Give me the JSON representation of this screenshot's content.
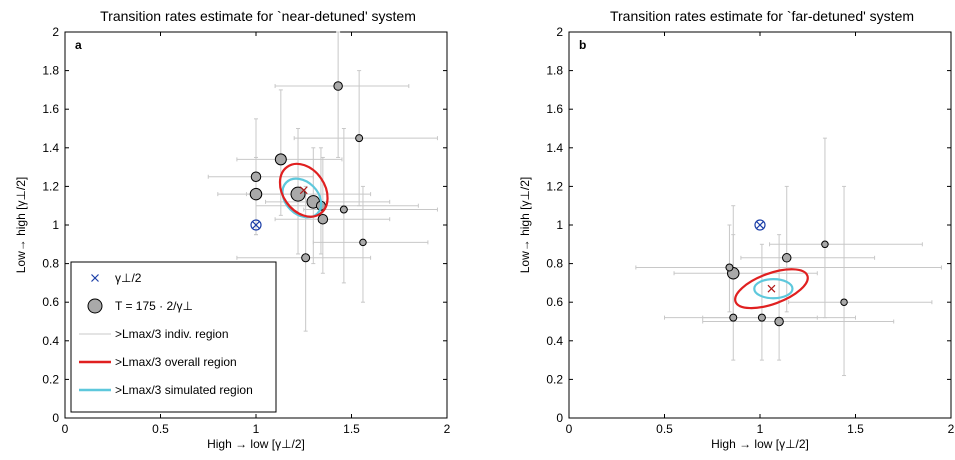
{
  "colors": {
    "point_fill": "#a9a9a9",
    "errorbar": "#c8c8c8",
    "overall": "#e02020",
    "simulated": "#5ec8dc",
    "gamma_marker": "#1c3fa8",
    "overall_center": "#b01818"
  },
  "legend": {
    "gamma": "γ⊥/2",
    "T_label": "T = 175 · 2/γ⊥",
    "indiv": ">Lmax/3 indiv. region",
    "overall": ">Lmax/3 overall region",
    "simulated": ">Lmax/3 simulated region"
  },
  "chart_data": [
    {
      "type": "scatter",
      "panel": "a",
      "title": "Transition rates estimate for `near-detuned' system",
      "xlabel": "High → low [γ⊥/2]",
      "ylabel": "Low→ high [γ⊥/2]",
      "xlim": [
        0,
        2
      ],
      "ylim": [
        0,
        2
      ],
      "xticks": [
        "0",
        "0.5",
        "1",
        "1.5",
        "2"
      ],
      "yticks": [
        "0",
        "0.2",
        "0.4",
        "0.6",
        "0.8",
        "1",
        "1.2",
        "1.4",
        "1.6",
        "1.8",
        "2"
      ],
      "gamma_marker": {
        "x": 1.0,
        "y": 1.0
      },
      "overall_ellipse": {
        "cx": 1.25,
        "cy": 1.18,
        "rx": 0.11,
        "ry": 0.15,
        "angle_deg": 35
      },
      "simulated_ellipse": {
        "cx": 1.24,
        "cy": 1.14,
        "rx": 0.085,
        "ry": 0.115,
        "angle_deg": 45
      },
      "overall_center": {
        "x": 1.25,
        "y": 1.18
      },
      "points": [
        {
          "x": 1.43,
          "y": 1.72,
          "size": 0.45,
          "xerr": [
            1.1,
            1.8
          ],
          "yerr": [
            1.35,
            2.0
          ]
        },
        {
          "x": 1.54,
          "y": 1.45,
          "size": 0.3,
          "xerr": [
            1.2,
            1.95
          ],
          "yerr": [
            1.1,
            1.8
          ]
        },
        {
          "x": 1.13,
          "y": 1.34,
          "size": 0.7,
          "xerr": [
            0.9,
            1.45
          ],
          "yerr": [
            1.05,
            1.7
          ]
        },
        {
          "x": 1.0,
          "y": 1.25,
          "size": 0.55,
          "xerr": [
            0.75,
            1.3
          ],
          "yerr": [
            0.95,
            1.55
          ]
        },
        {
          "x": 1.0,
          "y": 1.16,
          "size": 0.75,
          "xerr": [
            0.8,
            1.2
          ],
          "yerr": [
            0.95,
            1.35
          ]
        },
        {
          "x": 1.22,
          "y": 1.16,
          "size": 1.0,
          "xerr": [
            0.95,
            1.6
          ],
          "yerr": [
            0.85,
            1.5
          ]
        },
        {
          "x": 1.3,
          "y": 1.12,
          "size": 0.85,
          "xerr": [
            1.05,
            1.7
          ],
          "yerr": [
            0.8,
            1.4
          ]
        },
        {
          "x": 1.34,
          "y": 1.1,
          "size": 0.5,
          "xerr": [
            1.0,
            1.85
          ],
          "yerr": [
            0.85,
            1.4
          ]
        },
        {
          "x": 1.35,
          "y": 1.03,
          "size": 0.55,
          "xerr": [
            1.1,
            1.7
          ],
          "yerr": [
            0.75,
            1.35
          ]
        },
        {
          "x": 1.46,
          "y": 1.08,
          "size": 0.3,
          "xerr": [
            1.25,
            1.95
          ],
          "yerr": [
            0.7,
            1.5
          ]
        },
        {
          "x": 1.26,
          "y": 0.83,
          "size": 0.4,
          "xerr": [
            0.9,
            1.6
          ],
          "yerr": [
            0.45,
            1.2
          ]
        },
        {
          "x": 1.56,
          "y": 0.91,
          "size": 0.25,
          "xerr": [
            1.3,
            1.9
          ],
          "yerr": [
            0.6,
            1.2
          ]
        }
      ],
      "legend_placement": "lower-left"
    },
    {
      "type": "scatter",
      "panel": "b",
      "title": "Transition rates estimate for `far-detuned' system",
      "xlabel": "High → low [γ⊥/2]",
      "ylabel": "Low→ high [γ⊥/2]",
      "xlim": [
        0,
        2
      ],
      "ylim": [
        0,
        2
      ],
      "xticks": [
        "0",
        "0.5",
        "1",
        "1.5",
        "2"
      ],
      "yticks": [
        "0",
        "0.2",
        "0.4",
        "0.6",
        "0.8",
        "1",
        "1.2",
        "1.4",
        "1.6",
        "1.8",
        "2"
      ],
      "gamma_marker": {
        "x": 1.0,
        "y": 1.0
      },
      "overall_ellipse": {
        "cx": 1.06,
        "cy": 0.67,
        "rx": 0.2,
        "ry": 0.08,
        "angle_deg": 20
      },
      "simulated_ellipse": {
        "cx": 1.07,
        "cy": 0.67,
        "rx": 0.1,
        "ry": 0.05,
        "angle_deg": 0
      },
      "overall_center": {
        "x": 1.06,
        "y": 0.67
      },
      "points": [
        {
          "x": 0.86,
          "y": 0.75,
          "size": 0.75,
          "xerr": [
            0.55,
            1.3
          ],
          "yerr": [
            0.5,
            1.1
          ]
        },
        {
          "x": 0.84,
          "y": 0.78,
          "size": 0.3,
          "xerr": [
            0.35,
            1.95
          ],
          "yerr": [
            0.55,
            1.0
          ]
        },
        {
          "x": 1.14,
          "y": 0.83,
          "size": 0.45,
          "xerr": [
            0.9,
            1.6
          ],
          "yerr": [
            0.55,
            1.2
          ]
        },
        {
          "x": 1.34,
          "y": 0.9,
          "size": 0.25,
          "xerr": [
            1.05,
            1.85
          ],
          "yerr": [
            0.52,
            1.45
          ]
        },
        {
          "x": 0.86,
          "y": 0.52,
          "size": 0.3,
          "xerr": [
            0.5,
            1.3
          ],
          "yerr": [
            0.3,
            0.95
          ]
        },
        {
          "x": 1.01,
          "y": 0.52,
          "size": 0.3,
          "xerr": [
            0.7,
            1.5
          ],
          "yerr": [
            0.3,
            0.9
          ]
        },
        {
          "x": 1.1,
          "y": 0.5,
          "size": 0.45,
          "xerr": [
            0.7,
            1.7
          ],
          "yerr": [
            0.3,
            0.95
          ]
        },
        {
          "x": 1.44,
          "y": 0.6,
          "size": 0.25,
          "xerr": [
            1.15,
            1.9
          ],
          "yerr": [
            0.22,
            1.2
          ]
        }
      ],
      "legend_placement": "none"
    }
  ]
}
